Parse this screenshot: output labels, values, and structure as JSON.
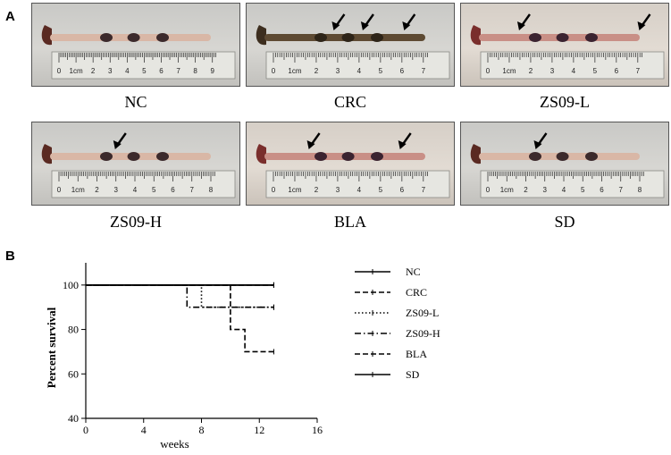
{
  "figure": {
    "panel_a_label": "A",
    "panel_b_label": "B"
  },
  "panel_a": {
    "photos": [
      {
        "caption": "NC",
        "ruler_labels": [
          "0",
          "1cm",
          "2",
          "3",
          "4",
          "5",
          "6",
          "7",
          "8",
          "9"
        ],
        "arrows": 0,
        "tissue": "pale"
      },
      {
        "caption": "CRC",
        "ruler_labels": [
          "0",
          "1cm",
          "2",
          "3",
          "4",
          "5",
          "6",
          "7"
        ],
        "arrows": 3,
        "tissue": "dark"
      },
      {
        "caption": "ZS09-L",
        "ruler_labels": [
          "0",
          "1cm",
          "2",
          "3",
          "4",
          "5",
          "6",
          "7"
        ],
        "arrows": 2,
        "tissue": "red"
      },
      {
        "caption": "ZS09-H",
        "ruler_labels": [
          "0",
          "1cm",
          "2",
          "3",
          "4",
          "5",
          "6",
          "7",
          "8"
        ],
        "arrows": 1,
        "tissue": "pale"
      },
      {
        "caption": "BLA",
        "ruler_labels": [
          "0",
          "1cm",
          "2",
          "3",
          "4",
          "5",
          "6",
          "7"
        ],
        "arrows": 2,
        "tissue": "red"
      },
      {
        "caption": "SD",
        "ruler_labels": [
          "0",
          "1cm",
          "2",
          "3",
          "4",
          "5",
          "6",
          "7",
          "8"
        ],
        "arrows": 1,
        "tissue": "pale"
      }
    ]
  },
  "chart_data": {
    "type": "line",
    "title": "",
    "xlabel": "weeks",
    "ylabel": "Percent survival",
    "xlim": [
      0,
      16
    ],
    "ylim": [
      40,
      110
    ],
    "x_ticks": [
      0,
      4,
      8,
      12,
      16
    ],
    "y_ticks": [
      40,
      60,
      80,
      100
    ],
    "step": true,
    "grid": false,
    "legend_position": "right",
    "series": [
      {
        "name": "NC",
        "points": [
          [
            0,
            100
          ],
          [
            13,
            100
          ]
        ],
        "dash": "solid"
      },
      {
        "name": "CRC",
        "points": [
          [
            0,
            100
          ],
          [
            10,
            100
          ],
          [
            10,
            80
          ],
          [
            11,
            80
          ],
          [
            11,
            70
          ],
          [
            13,
            70
          ]
        ],
        "dash": "dash"
      },
      {
        "name": "ZS09-L",
        "points": [
          [
            0,
            100
          ],
          [
            8,
            100
          ],
          [
            8,
            90
          ],
          [
            13,
            90
          ]
        ],
        "dash": "dot"
      },
      {
        "name": "ZS09-H",
        "points": [
          [
            0,
            100
          ],
          [
            7,
            100
          ],
          [
            7,
            90
          ],
          [
            13,
            90
          ]
        ],
        "dash": "dashdot"
      },
      {
        "name": "BLA",
        "points": [
          [
            0,
            100
          ],
          [
            13,
            100
          ]
        ],
        "dash": "dash"
      },
      {
        "name": "SD",
        "points": [
          [
            0,
            100
          ],
          [
            13,
            100
          ]
        ],
        "dash": "solid"
      }
    ]
  }
}
